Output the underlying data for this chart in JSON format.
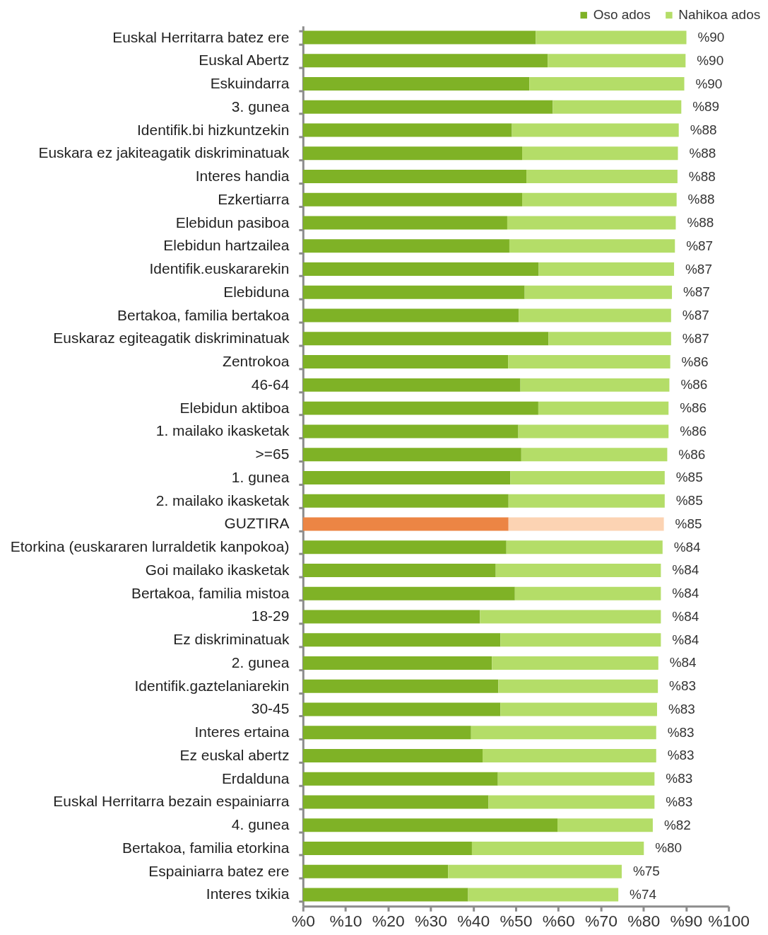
{
  "chart_data": {
    "type": "bar",
    "orientation": "horizontal",
    "stacked": true,
    "categories": [
      "Euskal Herritarra batez ere",
      "Euskal Abertz",
      "Eskuindarra",
      "3. gunea",
      "Identifik.bi hizkuntzekin",
      "Euskara ez jakiteagatik diskriminatuak",
      "Interes handia",
      "Ezkertiarra",
      "Elebidun pasiboa",
      "Elebidun hartzailea",
      "Identifik.euskararekin",
      "Elebiduna",
      "Bertakoa, familia bertakoa",
      "Euskaraz egiteagatik diskriminatuak",
      "Zentrokoa",
      "46-64",
      "Elebidun aktiboa",
      "1. mailako ikasketak",
      ">=65",
      "1. gunea",
      "2. mailako ikasketak",
      "GUZTIRA",
      "Etorkina (euskararen lurraldetik kanpokoa)",
      "Goi mailako ikasketak",
      "Bertakoa, familia mistoa",
      "18-29",
      "Ez diskriminatuak",
      "2. gunea",
      "Identifik.gaztelaniarekin",
      "30-45",
      "Interes ertaina",
      "Ez euskal abertz",
      "Erdalduna",
      "Euskal Herritarra bezain espainiarra",
      "4. gunea",
      "Bertakoa, familia etorkina",
      "Espainiarra batez ere",
      "Interes txikia"
    ],
    "series": [
      {
        "name": "Oso ados",
        "color": "#7fb226",
        "colors": [
          "#7fb226",
          "#7fb226",
          "#7fb226",
          "#7fb226",
          "#7fb226",
          "#7fb226",
          "#7fb226",
          "#7fb226",
          "#7fb226",
          "#7fb226",
          "#7fb226",
          "#7fb226",
          "#7fb226",
          "#7fb226",
          "#7fb226",
          "#7fb226",
          "#7fb226",
          "#7fb226",
          "#7fb226",
          "#7fb226",
          "#7fb226",
          "#ec8544",
          "#7fb226",
          "#7fb226",
          "#7fb226",
          "#7fb226",
          "#7fb226",
          "#7fb226",
          "#7fb226",
          "#7fb226",
          "#7fb226",
          "#7fb226",
          "#7fb226",
          "#7fb226",
          "#7fb226",
          "#7fb226",
          "#7fb226",
          "#7fb226"
        ],
        "values": [
          54.7,
          57.5,
          53.2,
          58.7,
          49.1,
          51.5,
          52.5,
          51.5,
          48.0,
          48.5,
          55.4,
          52.1,
          50.7,
          57.7,
          48.2,
          51.1,
          55.3,
          50.6,
          51.3,
          48.7,
          48.3,
          48.3,
          47.8,
          45.3,
          49.8,
          41.6,
          46.4,
          44.4,
          45.9,
          46.4,
          39.5,
          42.2,
          45.8,
          43.6,
          59.8,
          39.7,
          34.1,
          38.8
        ]
      },
      {
        "name": "Nahikoa ados",
        "color": "#b4dd68",
        "colors": [
          "#b4dd68",
          "#b4dd68",
          "#b4dd68",
          "#b4dd68",
          "#b4dd68",
          "#b4dd68",
          "#b4dd68",
          "#b4dd68",
          "#b4dd68",
          "#b4dd68",
          "#b4dd68",
          "#b4dd68",
          "#b4dd68",
          "#b4dd68",
          "#b4dd68",
          "#b4dd68",
          "#b4dd68",
          "#b4dd68",
          "#b4dd68",
          "#b4dd68",
          "#b4dd68",
          "#fcd3b3",
          "#b4dd68",
          "#b4dd68",
          "#b4dd68",
          "#b4dd68",
          "#b4dd68",
          "#b4dd68",
          "#b4dd68",
          "#b4dd68",
          "#b4dd68",
          "#b4dd68",
          "#b4dd68",
          "#b4dd68",
          "#b4dd68",
          "#b4dd68",
          "#b4dd68",
          "#b4dd68"
        ],
        "values": [
          35.4,
          32.4,
          36.4,
          30.2,
          39.2,
          36.6,
          35.5,
          36.3,
          39.6,
          38.9,
          31.8,
          34.6,
          35.8,
          28.8,
          38.1,
          35.0,
          30.6,
          35.3,
          34.3,
          36.3,
          36.7,
          36.5,
          36.7,
          38.8,
          34.3,
          42.5,
          37.7,
          39.1,
          37.5,
          36.8,
          43.5,
          40.8,
          36.8,
          39.0,
          22.4,
          40.4,
          40.8,
          35.3
        ]
      }
    ],
    "totals": [
      "%90",
      "%90",
      "%90",
      "%89",
      "%88",
      "%88",
      "%88",
      "%88",
      "%88",
      "%87",
      "%87",
      "%87",
      "%87",
      "%87",
      "%86",
      "%86",
      "%86",
      "%86",
      "%86",
      "%85",
      "%85",
      "%85",
      "%84",
      "%84",
      "%84",
      "%84",
      "%84",
      "%84",
      "%83",
      "%83",
      "%83",
      "%83",
      "%83",
      "%83",
      "%82",
      "%80",
      "%75",
      "%74"
    ],
    "xlim": [
      0,
      100
    ],
    "xticks": [
      {
        "value": 0,
        "label": "%0"
      },
      {
        "value": 10,
        "label": "%10"
      },
      {
        "value": 20,
        "label": "%20"
      },
      {
        "value": 30,
        "label": "%30"
      },
      {
        "value": 40,
        "label": "%40"
      },
      {
        "value": 50,
        "label": "%50"
      },
      {
        "value": 60,
        "label": "%60"
      },
      {
        "value": 70,
        "label": "%70"
      },
      {
        "value": 80,
        "label": "%80"
      },
      {
        "value": 90,
        "label": "%90"
      },
      {
        "value": 100,
        "label": "%100"
      }
    ],
    "grid": false,
    "legend": "top right"
  }
}
